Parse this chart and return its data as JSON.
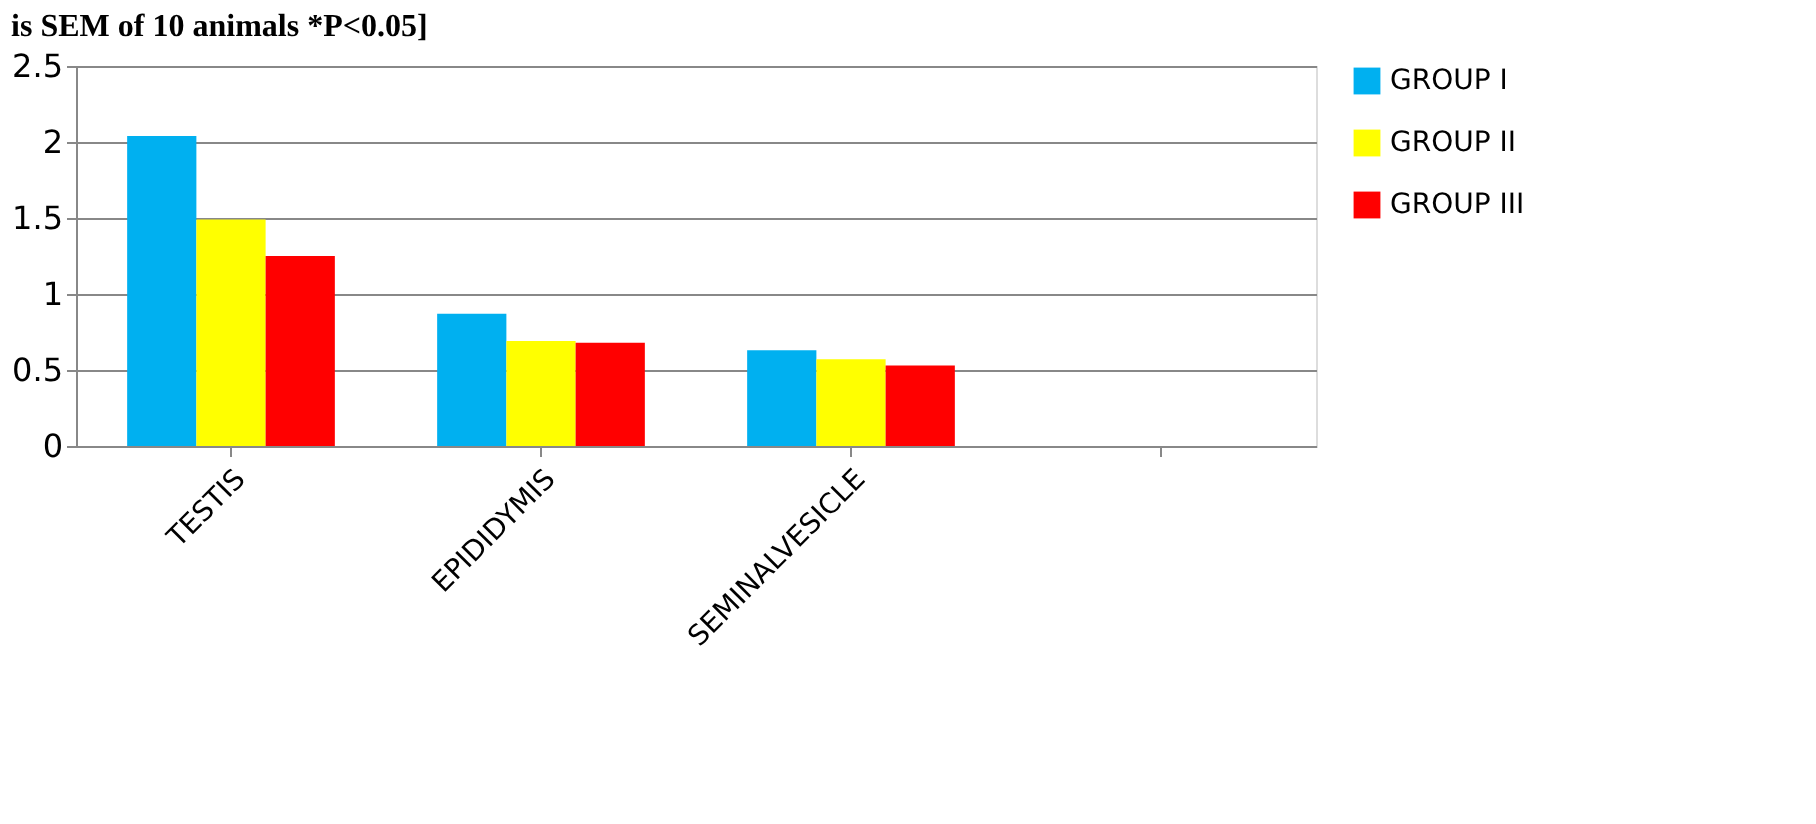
{
  "chart_data": {
    "type": "bar",
    "title": "is SEM of 10 animals *P<0.05]",
    "categories": [
      "TESTIS",
      "EPIDIDYMIS",
      "SEMINALVESICLE",
      null
    ],
    "series": [
      {
        "name": "GROUP I",
        "color": "#00b0f0",
        "values": [
          2.04,
          0.87,
          0.63,
          null
        ]
      },
      {
        "name": "GROUP II",
        "color": "#ffff00",
        "values": [
          1.49,
          0.69,
          0.57,
          null
        ]
      },
      {
        "name": "GROUP III",
        "color": "#ff0000",
        "values": [
          1.25,
          0.68,
          0.53,
          null
        ]
      }
    ],
    "ylim": [
      0,
      2.5
    ],
    "yticks": [
      0,
      0.5,
      1,
      1.5,
      2,
      2.5
    ],
    "grid": "y",
    "legend": "right"
  }
}
